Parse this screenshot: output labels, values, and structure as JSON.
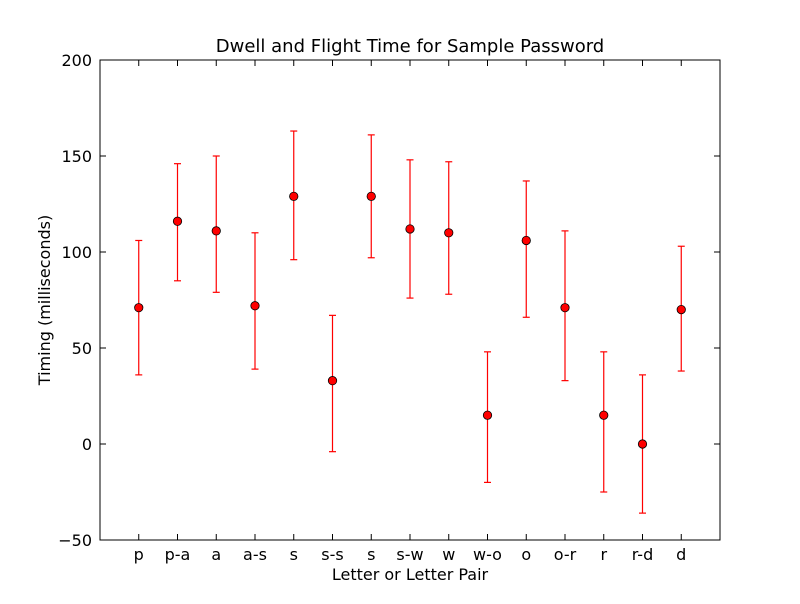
{
  "chart_data": {
    "type": "scatter",
    "title": "Dwell and Flight Time for Sample Password",
    "xlabel": "Letter or Letter Pair",
    "ylabel": "Timing (milliseconds)",
    "ylim": [
      -50,
      200
    ],
    "yticks": [
      -50,
      0,
      50,
      100,
      150,
      200
    ],
    "ytick_labels": [
      "−50",
      "0",
      "50",
      "100",
      "150",
      "200"
    ],
    "categories": [
      "p",
      "p-a",
      "a",
      "a-s",
      "s",
      "s-s",
      "s",
      "s-w",
      "w",
      "w-o",
      "o",
      "o-r",
      "r",
      "r-d",
      "d"
    ],
    "series": [
      {
        "values": [
          71,
          116,
          111,
          72,
          129,
          33,
          129,
          112,
          110,
          15,
          106,
          71,
          15,
          0,
          70
        ],
        "lower": [
          36,
          85,
          79,
          39,
          96,
          -4,
          97,
          76,
          78,
          -20,
          66,
          33,
          -25,
          -36,
          38
        ],
        "upper": [
          106,
          146,
          150,
          110,
          163,
          67,
          161,
          148,
          147,
          48,
          137,
          111,
          48,
          36,
          103
        ],
        "color": "#ff0000",
        "errorbar_color": "#ff0000"
      }
    ],
    "grid": false,
    "legend": "none"
  }
}
